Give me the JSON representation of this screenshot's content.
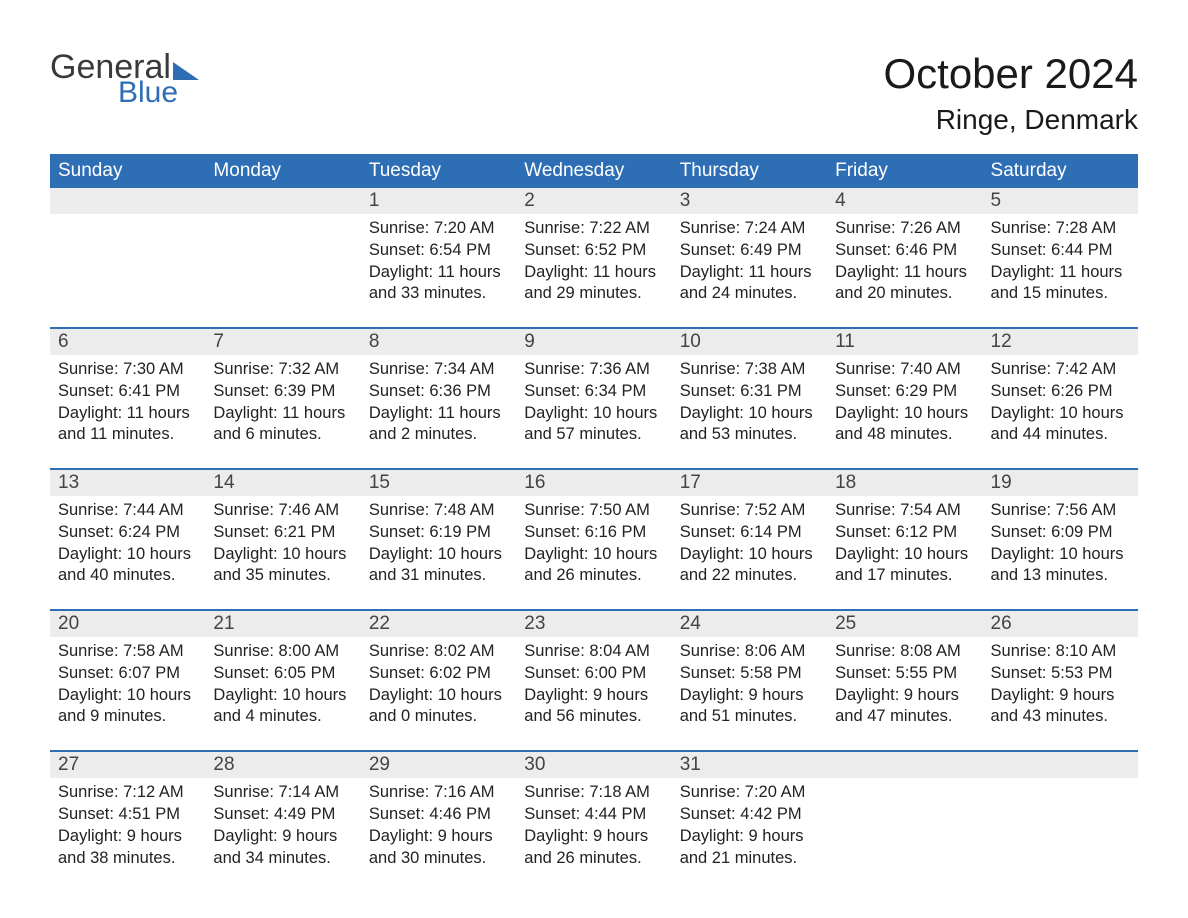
{
  "logo": {
    "word1": "General",
    "word2": "Blue"
  },
  "title": "October 2024",
  "location": "Ringe, Denmark",
  "colors": {
    "brand_blue": "#2e6eb5",
    "header_text": "#ffffff",
    "daynum_bg": "#ececec",
    "text": "#222222",
    "page_bg": "#ffffff"
  },
  "calendar": {
    "month": 10,
    "year": 2024,
    "first_day_of_week": "Sunday",
    "days_of_week": [
      "Sunday",
      "Monday",
      "Tuesday",
      "Wednesday",
      "Thursday",
      "Friday",
      "Saturday"
    ],
    "leading_blanks": 2,
    "days": [
      {
        "n": 1,
        "sunrise": "7:20 AM",
        "sunset": "6:54 PM",
        "daylight": "11 hours and 33 minutes."
      },
      {
        "n": 2,
        "sunrise": "7:22 AM",
        "sunset": "6:52 PM",
        "daylight": "11 hours and 29 minutes."
      },
      {
        "n": 3,
        "sunrise": "7:24 AM",
        "sunset": "6:49 PM",
        "daylight": "11 hours and 24 minutes."
      },
      {
        "n": 4,
        "sunrise": "7:26 AM",
        "sunset": "6:46 PM",
        "daylight": "11 hours and 20 minutes."
      },
      {
        "n": 5,
        "sunrise": "7:28 AM",
        "sunset": "6:44 PM",
        "daylight": "11 hours and 15 minutes."
      },
      {
        "n": 6,
        "sunrise": "7:30 AM",
        "sunset": "6:41 PM",
        "daylight": "11 hours and 11 minutes."
      },
      {
        "n": 7,
        "sunrise": "7:32 AM",
        "sunset": "6:39 PM",
        "daylight": "11 hours and 6 minutes."
      },
      {
        "n": 8,
        "sunrise": "7:34 AM",
        "sunset": "6:36 PM",
        "daylight": "11 hours and 2 minutes."
      },
      {
        "n": 9,
        "sunrise": "7:36 AM",
        "sunset": "6:34 PM",
        "daylight": "10 hours and 57 minutes."
      },
      {
        "n": 10,
        "sunrise": "7:38 AM",
        "sunset": "6:31 PM",
        "daylight": "10 hours and 53 minutes."
      },
      {
        "n": 11,
        "sunrise": "7:40 AM",
        "sunset": "6:29 PM",
        "daylight": "10 hours and 48 minutes."
      },
      {
        "n": 12,
        "sunrise": "7:42 AM",
        "sunset": "6:26 PM",
        "daylight": "10 hours and 44 minutes."
      },
      {
        "n": 13,
        "sunrise": "7:44 AM",
        "sunset": "6:24 PM",
        "daylight": "10 hours and 40 minutes."
      },
      {
        "n": 14,
        "sunrise": "7:46 AM",
        "sunset": "6:21 PM",
        "daylight": "10 hours and 35 minutes."
      },
      {
        "n": 15,
        "sunrise": "7:48 AM",
        "sunset": "6:19 PM",
        "daylight": "10 hours and 31 minutes."
      },
      {
        "n": 16,
        "sunrise": "7:50 AM",
        "sunset": "6:16 PM",
        "daylight": "10 hours and 26 minutes."
      },
      {
        "n": 17,
        "sunrise": "7:52 AM",
        "sunset": "6:14 PM",
        "daylight": "10 hours and 22 minutes."
      },
      {
        "n": 18,
        "sunrise": "7:54 AM",
        "sunset": "6:12 PM",
        "daylight": "10 hours and 17 minutes."
      },
      {
        "n": 19,
        "sunrise": "7:56 AM",
        "sunset": "6:09 PM",
        "daylight": "10 hours and 13 minutes."
      },
      {
        "n": 20,
        "sunrise": "7:58 AM",
        "sunset": "6:07 PM",
        "daylight": "10 hours and 9 minutes."
      },
      {
        "n": 21,
        "sunrise": "8:00 AM",
        "sunset": "6:05 PM",
        "daylight": "10 hours and 4 minutes."
      },
      {
        "n": 22,
        "sunrise": "8:02 AM",
        "sunset": "6:02 PM",
        "daylight": "10 hours and 0 minutes."
      },
      {
        "n": 23,
        "sunrise": "8:04 AM",
        "sunset": "6:00 PM",
        "daylight": "9 hours and 56 minutes."
      },
      {
        "n": 24,
        "sunrise": "8:06 AM",
        "sunset": "5:58 PM",
        "daylight": "9 hours and 51 minutes."
      },
      {
        "n": 25,
        "sunrise": "8:08 AM",
        "sunset": "5:55 PM",
        "daylight": "9 hours and 47 minutes."
      },
      {
        "n": 26,
        "sunrise": "8:10 AM",
        "sunset": "5:53 PM",
        "daylight": "9 hours and 43 minutes."
      },
      {
        "n": 27,
        "sunrise": "7:12 AM",
        "sunset": "4:51 PM",
        "daylight": "9 hours and 38 minutes."
      },
      {
        "n": 28,
        "sunrise": "7:14 AM",
        "sunset": "4:49 PM",
        "daylight": "9 hours and 34 minutes."
      },
      {
        "n": 29,
        "sunrise": "7:16 AM",
        "sunset": "4:46 PM",
        "daylight": "9 hours and 30 minutes."
      },
      {
        "n": 30,
        "sunrise": "7:18 AM",
        "sunset": "4:44 PM",
        "daylight": "9 hours and 26 minutes."
      },
      {
        "n": 31,
        "sunrise": "7:20 AM",
        "sunset": "4:42 PM",
        "daylight": "9 hours and 21 minutes."
      }
    ],
    "labels": {
      "sunrise": "Sunrise:",
      "sunset": "Sunset:",
      "daylight": "Daylight:"
    }
  }
}
